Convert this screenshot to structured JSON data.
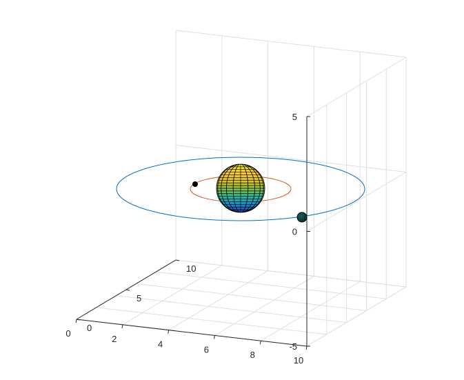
{
  "chart_data": {
    "type": "3d-surface-line",
    "grid": true,
    "axes": {
      "x": {
        "ticks": [
          0,
          2,
          4,
          6,
          8,
          10
        ],
        "tick_labels": [
          "0",
          "2",
          "4",
          "6",
          "8",
          "10"
        ],
        "lim": [
          0,
          10
        ]
      },
      "y": {
        "ticks": [
          0,
          5,
          10
        ],
        "tick_labels": [
          "0",
          "5",
          "10"
        ],
        "lim": [
          0,
          10
        ]
      },
      "z": {
        "ticks": [
          -5,
          0,
          5
        ],
        "tick_labels": [
          "-5",
          "0",
          "5"
        ],
        "lim": [
          -5,
          5
        ]
      }
    },
    "objects": [
      {
        "kind": "orbit",
        "color": "#0072BD",
        "semi_major_x": 5.5,
        "semi_major_y": 5.5,
        "center": [
          5,
          5,
          0
        ]
      },
      {
        "kind": "orbit",
        "color": "#D95319",
        "semi_major_x": 2.2,
        "semi_major_y": 2.2,
        "center": [
          5,
          5,
          0
        ]
      },
      {
        "kind": "sphere",
        "colormap": "parula",
        "center": [
          5,
          5,
          0
        ],
        "radius": 1
      },
      {
        "kind": "planet",
        "color": "#000000",
        "on_orbit": 1
      },
      {
        "kind": "planet",
        "color": "#0e5850",
        "on_orbit": 0
      }
    ]
  }
}
